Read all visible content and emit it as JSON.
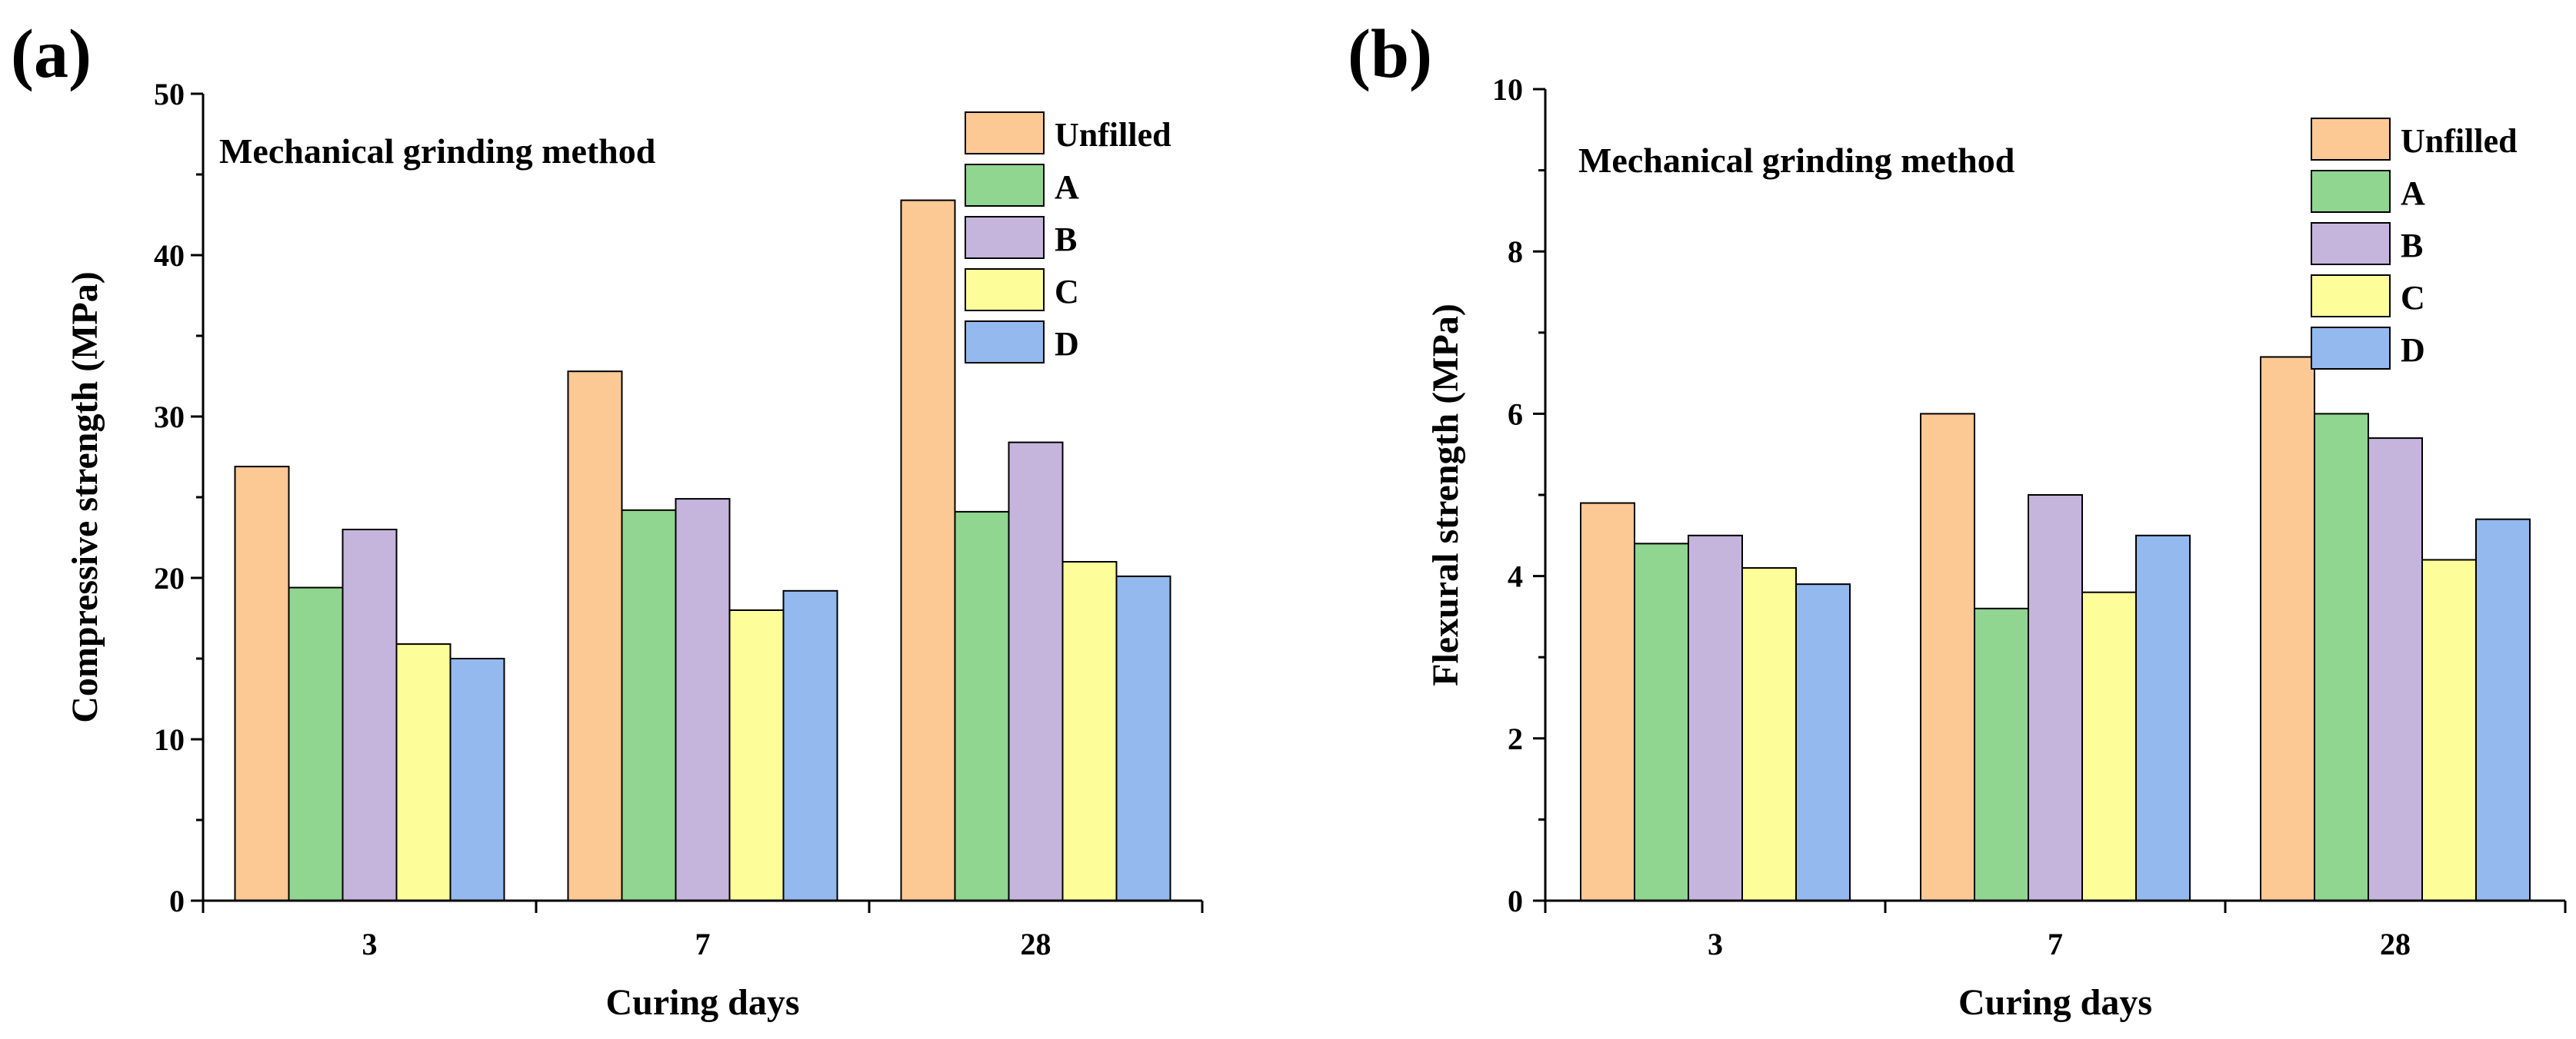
{
  "figure": {
    "panels": [
      {
        "label": "(a)",
        "chart_data": {
          "type": "bar",
          "title": "Mechanical grinding method",
          "xlabel": "Curing days",
          "ylabel": "Compressive strength (MPa)",
          "categories": [
            "3",
            "7",
            "28"
          ],
          "ylim": [
            0,
            50
          ],
          "yticks": [
            "0",
            "10",
            "20",
            "30",
            "40",
            "50"
          ],
          "legend_position": "top-right",
          "series": [
            {
              "name": "Unfilled",
              "color": "#fcc894",
              "values": [
                26.9,
                32.8,
                43.4
              ]
            },
            {
              "name": "A",
              "color": "#90d590",
              "values": [
                19.4,
                24.2,
                24.1
              ]
            },
            {
              "name": "B",
              "color": "#c5b5dd",
              "values": [
                23.0,
                24.9,
                28.4
              ]
            },
            {
              "name": "C",
              "color": "#fdfd99",
              "values": [
                15.9,
                18.0,
                21.0
              ]
            },
            {
              "name": "D",
              "color": "#93b9ef",
              "values": [
                15.0,
                19.2,
                20.1
              ]
            }
          ]
        }
      },
      {
        "label": "(b)",
        "chart_data": {
          "type": "bar",
          "title": "Mechanical grinding method",
          "xlabel": "Curing days",
          "ylabel": "Flexural strength (MPa)",
          "categories": [
            "3",
            "7",
            "28"
          ],
          "ylim": [
            0,
            10
          ],
          "yticks": [
            "0",
            "2",
            "4",
            "6",
            "8",
            "10"
          ],
          "legend_position": "top-right",
          "series": [
            {
              "name": "Unfilled",
              "color": "#fcc894",
              "values": [
                4.9,
                6.0,
                6.7
              ]
            },
            {
              "name": "A",
              "color": "#90d590",
              "values": [
                4.4,
                3.6,
                6.0
              ]
            },
            {
              "name": "B",
              "color": "#c5b5dd",
              "values": [
                4.5,
                5.0,
                5.7
              ]
            },
            {
              "name": "C",
              "color": "#fdfd99",
              "values": [
                4.1,
                3.8,
                4.2
              ]
            },
            {
              "name": "D",
              "color": "#93b9ef",
              "values": [
                3.9,
                4.5,
                4.7
              ]
            }
          ]
        }
      }
    ]
  }
}
